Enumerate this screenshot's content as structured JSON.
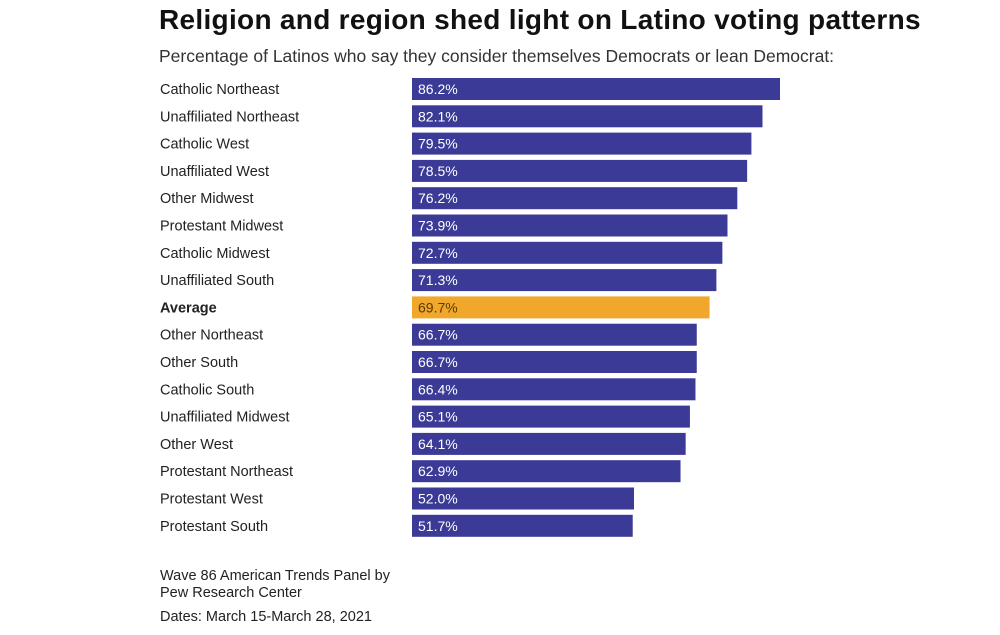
{
  "title": "Religion and region shed light on Latino voting patterns",
  "subtitle": "Percentage of Latinos who say they consider themselves Democrats or lean Democrat:",
  "source": "Wave 86 American Trends Panel by Pew Research Center",
  "dates": "Dates: March 15-March 28, 2021",
  "colors": {
    "bar": "#3b3a97",
    "highlight": "#f0a72b",
    "label_text": "#ffffff"
  },
  "chart_data": {
    "type": "bar",
    "orientation": "horizontal",
    "categories": [
      "Catholic Northeast",
      "Unaffiliated Northeast",
      "Catholic West",
      "Unaffiliated West",
      "Other Midwest",
      "Protestant Midwest",
      "Catholic Midwest",
      "Unaffiliated South",
      "Average",
      "Other Northeast",
      "Other South",
      "Catholic South",
      "Unaffiliated Midwest",
      "Other West",
      "Protestant Northeast",
      "Protestant West",
      "Protestant South"
    ],
    "values": [
      86.2,
      82.1,
      79.5,
      78.5,
      76.2,
      73.9,
      72.7,
      71.3,
      69.7,
      66.7,
      66.7,
      66.4,
      65.1,
      64.1,
      62.9,
      52.0,
      51.7
    ],
    "value_labels": [
      "86.2%",
      "82.1%",
      "79.5%",
      "78.5%",
      "76.2%",
      "73.9%",
      "72.7%",
      "71.3%",
      "69.7%",
      "66.7%",
      "66.7%",
      "66.4%",
      "65.1%",
      "64.1%",
      "62.9%",
      "52.0%",
      "51.7%"
    ],
    "highlight_category": "Average",
    "xlim": [
      0,
      86.2
    ],
    "grid": false,
    "legend": "none"
  }
}
